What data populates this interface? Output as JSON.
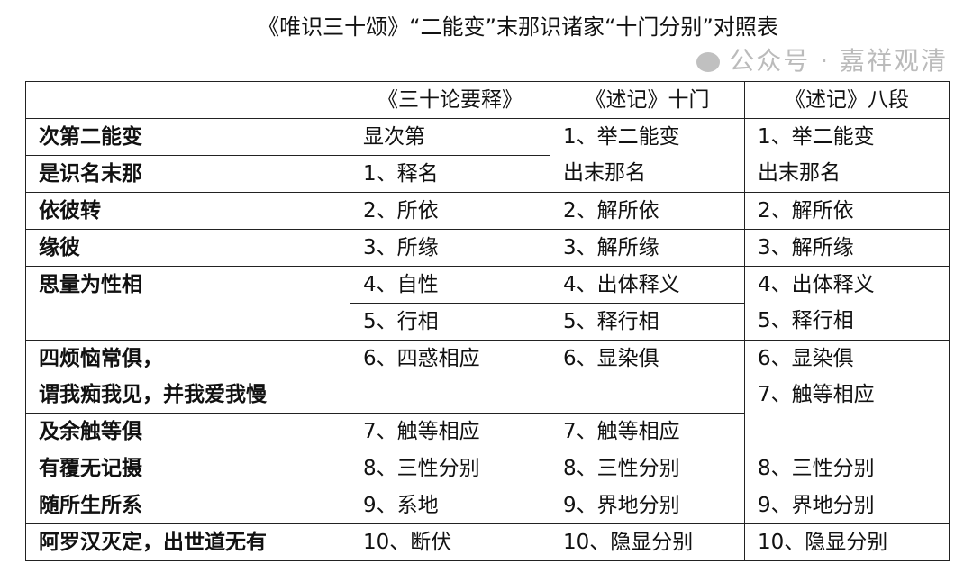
{
  "title": "《唯识三十颂》“二能变”末那识诸家“十门分别”对照表",
  "header": [
    "",
    "《三十论要释》",
    "《述记》十门",
    "《述记》八段"
  ],
  "rows": [
    [
      {
        "lines": [
          "次第二能变"
        ]
      },
      {
        "lines": [
          "显次第"
        ]
      },
      {
        "lines": [
          "1、举二能变",
          "出末那名"
        ],
        "rowspan": 2
      },
      {
        "lines": [
          "1、举二能变",
          "出末那名"
        ],
        "rowspan": 2
      }
    ],
    [
      {
        "lines": [
          "是识名末那"
        ]
      },
      {
        "lines": [
          "1、释名"
        ]
      }
    ],
    [
      {
        "lines": [
          "依彼转"
        ]
      },
      {
        "lines": [
          "2、所依"
        ]
      },
      {
        "lines": [
          "2、解所依"
        ]
      },
      {
        "lines": [
          "2、解所依"
        ]
      }
    ],
    [
      {
        "lines": [
          "缘彼"
        ]
      },
      {
        "lines": [
          "3、所缘"
        ]
      },
      {
        "lines": [
          "3、解所缘"
        ]
      },
      {
        "lines": [
          "3、解所缘"
        ]
      }
    ],
    [
      {
        "lines": [
          "思量为性相"
        ],
        "rowspan": 2
      },
      {
        "lines": [
          "4、自性"
        ]
      },
      {
        "lines": [
          "4、出体释义"
        ]
      },
      {
        "lines": [
          "4、出体释义",
          "5、释行相"
        ],
        "rowspan": 2
      }
    ],
    [
      {
        "lines": [
          "5、行相"
        ]
      },
      {
        "lines": [
          "5、释行相"
        ]
      }
    ],
    [
      {
        "lines": [
          "四烦恼常俱，",
          "谓我痴我见，并我爱我慢"
        ],
        "rowspan": 2
      },
      {
        "lines": [
          "6、四惑相应"
        ],
        "rowspan": 2
      },
      {
        "lines": [
          "6、显染俱"
        ],
        "rowspan": 2
      },
      {
        "lines": [
          "6、显染俱",
          "7、触等相应"
        ],
        "rowspan": 3
      }
    ],
    [],
    [
      {
        "lines": [
          "及余触等俱"
        ]
      },
      {
        "lines": [
          "7、触等相应"
        ]
      },
      {
        "lines": [
          "7、触等相应"
        ]
      }
    ],
    [
      {
        "lines": [
          "有覆无记摄"
        ]
      },
      {
        "lines": [
          "8、三性分别"
        ]
      },
      {
        "lines": [
          "8、三性分别"
        ]
      },
      {
        "lines": [
          "8、三性分别"
        ]
      }
    ],
    [
      {
        "lines": [
          "随所生所系"
        ]
      },
      {
        "lines": [
          "9、系地"
        ]
      },
      {
        "lines": [
          "9、界地分别"
        ]
      },
      {
        "lines": [
          "9、界地分别"
        ]
      }
    ],
    [
      {
        "lines": [
          "阿罗汉灭定，出世道无有"
        ]
      },
      {
        "lines": [
          "10、断伏"
        ]
      },
      {
        "lines": [
          "10、隐显分别"
        ]
      },
      {
        "lines": [
          "10、隐显分别"
        ]
      }
    ]
  ],
  "watermark": "公众号 · 嘉祥观清"
}
